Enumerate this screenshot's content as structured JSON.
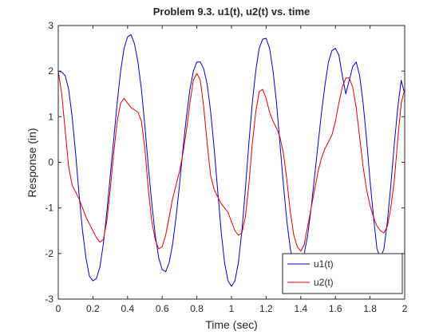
{
  "chart_data": {
    "type": "line",
    "title": "Problem 9.3. u1(t), u2(t) vs. time",
    "xlabel": "Time (sec)",
    "ylabel": "Response (in)",
    "xlim": [
      0,
      2
    ],
    "ylim": [
      -3,
      3
    ],
    "xticks": [
      0,
      0.2,
      0.4,
      0.6,
      0.8,
      1,
      1.2,
      1.4,
      1.6,
      1.8,
      2
    ],
    "xtick_labels": [
      "0",
      "0.2",
      "0.4",
      "0.6",
      "0.8",
      "1",
      "1.2",
      "1.4",
      "1.6",
      "1.8",
      "2"
    ],
    "yticks": [
      -3,
      -2,
      -1,
      0,
      1,
      2,
      3
    ],
    "ytick_labels": [
      "-3",
      "-2",
      "-1",
      "0",
      "1",
      "2",
      "3"
    ],
    "grid": false,
    "legend_position": "bottom-right",
    "legend": [
      "u1(t)",
      "u2(t)"
    ],
    "series": [
      {
        "name": "u1(t)",
        "color": "#0000cc",
        "x": [
          0,
          0.02,
          0.04,
          0.06,
          0.08,
          0.1,
          0.12,
          0.14,
          0.16,
          0.18,
          0.2,
          0.22,
          0.24,
          0.26,
          0.28,
          0.3,
          0.32,
          0.34,
          0.36,
          0.38,
          0.4,
          0.42,
          0.44,
          0.46,
          0.48,
          0.5,
          0.52,
          0.54,
          0.56,
          0.58,
          0.6,
          0.62,
          0.64,
          0.66,
          0.68,
          0.7,
          0.72,
          0.74,
          0.76,
          0.78,
          0.8,
          0.82,
          0.84,
          0.86,
          0.88,
          0.9,
          0.92,
          0.94,
          0.96,
          0.98,
          1.0,
          1.02,
          1.04,
          1.06,
          1.08,
          1.1,
          1.12,
          1.14,
          1.16,
          1.18,
          1.2,
          1.22,
          1.24,
          1.26,
          1.28,
          1.3,
          1.32,
          1.34,
          1.36,
          1.38,
          1.4,
          1.42,
          1.44,
          1.46,
          1.48,
          1.5,
          1.52,
          1.54,
          1.56,
          1.58,
          1.6,
          1.62,
          1.64,
          1.66,
          1.68,
          1.7,
          1.72,
          1.74,
          1.76,
          1.78,
          1.8,
          1.82,
          1.84,
          1.86,
          1.88,
          1.9,
          1.92,
          1.94,
          1.96,
          1.98,
          2.0
        ],
        "y": [
          2.0,
          1.98,
          1.9,
          1.6,
          1.0,
          0.2,
          -0.7,
          -1.5,
          -2.1,
          -2.5,
          -2.6,
          -2.55,
          -2.3,
          -1.8,
          -1.1,
          -0.3,
          0.5,
          1.3,
          2.0,
          2.5,
          2.75,
          2.8,
          2.6,
          2.2,
          1.6,
          0.8,
          -0.1,
          -0.9,
          -1.6,
          -2.1,
          -2.35,
          -2.4,
          -2.2,
          -1.8,
          -1.2,
          -0.5,
          0.3,
          1.0,
          1.6,
          2.0,
          2.2,
          2.2,
          2.05,
          1.7,
          1.1,
          0.3,
          -0.6,
          -1.5,
          -2.2,
          -2.6,
          -2.72,
          -2.6,
          -2.2,
          -1.5,
          -0.6,
          0.4,
          1.3,
          2.0,
          2.5,
          2.7,
          2.72,
          2.5,
          2.0,
          1.3,
          0.4,
          -0.5,
          -1.3,
          -1.9,
          -2.25,
          -2.35,
          -2.25,
          -2.0,
          -1.6,
          -1.0,
          -0.3,
          0.4,
          1.1,
          1.7,
          2.2,
          2.45,
          2.5,
          2.35,
          1.9,
          1.5,
          1.8,
          2.1,
          2.2,
          1.9,
          1.3,
          0.5,
          -0.4,
          -1.2,
          -1.9,
          -2.1,
          -1.9,
          -1.3,
          -0.5,
          0.4,
          1.2,
          1.8,
          1.5
        ]
      },
      {
        "name": "u2(t)",
        "color": "#dd0000",
        "x": [
          0,
          0.02,
          0.04,
          0.06,
          0.08,
          0.1,
          0.12,
          0.14,
          0.16,
          0.18,
          0.2,
          0.22,
          0.24,
          0.26,
          0.28,
          0.3,
          0.32,
          0.34,
          0.36,
          0.38,
          0.4,
          0.42,
          0.44,
          0.46,
          0.48,
          0.5,
          0.52,
          0.54,
          0.56,
          0.58,
          0.6,
          0.62,
          0.64,
          0.66,
          0.68,
          0.7,
          0.72,
          0.74,
          0.76,
          0.78,
          0.8,
          0.82,
          0.84,
          0.86,
          0.88,
          0.9,
          0.92,
          0.94,
          0.96,
          0.98,
          1.0,
          1.02,
          1.04,
          1.06,
          1.08,
          1.1,
          1.12,
          1.14,
          1.16,
          1.18,
          1.2,
          1.22,
          1.24,
          1.26,
          1.28,
          1.3,
          1.32,
          1.34,
          1.36,
          1.38,
          1.4,
          1.42,
          1.44,
          1.46,
          1.48,
          1.5,
          1.52,
          1.54,
          1.56,
          1.58,
          1.6,
          1.62,
          1.64,
          1.66,
          1.68,
          1.7,
          1.72,
          1.74,
          1.76,
          1.78,
          1.8,
          1.82,
          1.84,
          1.86,
          1.88,
          1.9,
          1.92,
          1.94,
          1.96,
          1.98,
          2.0
        ],
        "y": [
          2.0,
          1.5,
          0.7,
          -0.1,
          -0.5,
          -0.65,
          -0.8,
          -1.0,
          -1.2,
          -1.35,
          -1.5,
          -1.65,
          -1.75,
          -1.7,
          -1.3,
          -0.6,
          0.2,
          0.9,
          1.3,
          1.4,
          1.3,
          1.2,
          1.15,
          1.1,
          0.9,
          0.3,
          -0.6,
          -1.3,
          -1.7,
          -1.9,
          -1.85,
          -1.6,
          -1.2,
          -0.8,
          -0.5,
          -0.2,
          0.2,
          0.7,
          1.3,
          1.8,
          1.95,
          1.8,
          1.2,
          0.4,
          -0.3,
          -0.6,
          -0.75,
          -0.9,
          -1.0,
          -1.1,
          -1.3,
          -1.5,
          -1.6,
          -1.55,
          -1.2,
          -0.5,
          0.4,
          1.1,
          1.55,
          1.6,
          1.4,
          1.1,
          0.9,
          0.75,
          0.55,
          0.2,
          -0.4,
          -1.1,
          -1.6,
          -1.85,
          -1.95,
          -1.8,
          -1.4,
          -1.0,
          -0.6,
          -0.2,
          0.1,
          0.3,
          0.45,
          0.6,
          0.9,
          1.3,
          1.65,
          1.85,
          1.85,
          1.65,
          1.2,
          0.55,
          -0.1,
          -0.6,
          -0.95,
          -1.2,
          -1.4,
          -1.5,
          -1.55,
          -1.4,
          -1.0,
          -0.4,
          0.5,
          1.3,
          1.6
        ]
      }
    ]
  }
}
